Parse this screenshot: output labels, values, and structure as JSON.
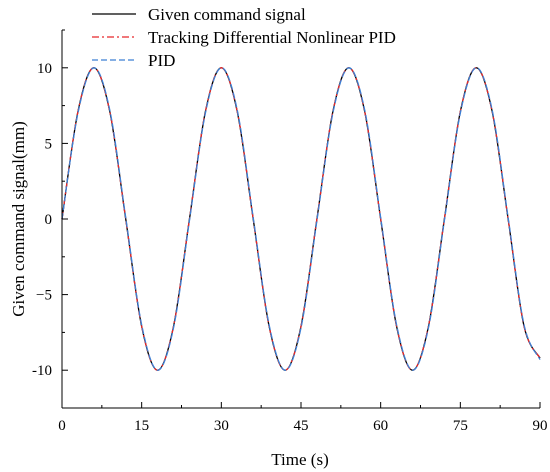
{
  "chart_data": {
    "type": "line",
    "title": "",
    "xlabel": "Time (s)",
    "ylabel": "Given command signal(mm)",
    "xlim": [
      0,
      90
    ],
    "ylim": [
      -12.5,
      12.5
    ],
    "xticks": [
      0,
      15,
      30,
      45,
      60,
      75,
      90
    ],
    "yticks": [
      -10,
      -5,
      0,
      5,
      10
    ],
    "x_tick_labels": [
      "0",
      "15",
      "30",
      "45",
      "60",
      "75",
      "90"
    ],
    "y_tick_labels": [
      "-10",
      "−5",
      "0",
      "5",
      "10"
    ],
    "grid": false,
    "legend": "top-left",
    "series": [
      {
        "name": "Given command signal",
        "color": "#000000",
        "style": "solid",
        "x": [
          0,
          3,
          6,
          9,
          12,
          15,
          18,
          21,
          24,
          27,
          30,
          33,
          36,
          39,
          42,
          45,
          48,
          51,
          54,
          57,
          60,
          63,
          66,
          69,
          72,
          75,
          78,
          81,
          84,
          87,
          90
        ],
        "y": [
          0,
          7.1,
          10,
          7.1,
          0,
          -7.1,
          -10,
          -7.1,
          0,
          7.1,
          10,
          7.1,
          0,
          -7.1,
          -10,
          -7.1,
          0,
          7.1,
          10,
          7.1,
          0,
          -7.1,
          -10,
          -7.1,
          0,
          7.1,
          10,
          7.1,
          0,
          -7.1,
          -9.2
        ]
      },
      {
        "name": "Tracking Differential Nonlinear PID",
        "color": "#e8272a",
        "style": "dashdot",
        "x": [
          0,
          3,
          6,
          9,
          12,
          15,
          18,
          21,
          24,
          27,
          30,
          33,
          36,
          39,
          42,
          45,
          48,
          51,
          54,
          57,
          60,
          63,
          66,
          69,
          72,
          75,
          78,
          81,
          84,
          87,
          90
        ],
        "y": [
          0,
          7.1,
          10,
          7.1,
          0,
          -7.1,
          -10,
          -7.1,
          0,
          7.1,
          10,
          7.1,
          0,
          -7.1,
          -10,
          -7.1,
          0,
          7.1,
          10,
          7.1,
          0,
          -7.1,
          -10,
          -7.1,
          0,
          7.1,
          10,
          7.1,
          0,
          -7.1,
          -9.2
        ]
      },
      {
        "name": "PID",
        "color": "#3c7fd4",
        "style": "dashed",
        "x": [
          0,
          3,
          6,
          9,
          12,
          15,
          18,
          21,
          24,
          27,
          30,
          33,
          36,
          39,
          42,
          45,
          48,
          51,
          54,
          57,
          60,
          63,
          66,
          69,
          72,
          75,
          78,
          81,
          84,
          87,
          90
        ],
        "y": [
          0,
          7.0,
          10,
          7.2,
          0.1,
          -7.0,
          -10,
          -7.2,
          -0.1,
          7.0,
          10,
          7.2,
          0.1,
          -7.0,
          -10,
          -7.2,
          -0.1,
          7.0,
          10,
          7.2,
          0.1,
          -7.0,
          -10,
          -7.2,
          -0.1,
          7.0,
          10,
          7.2,
          0.1,
          -7.0,
          -9.3
        ]
      }
    ]
  }
}
